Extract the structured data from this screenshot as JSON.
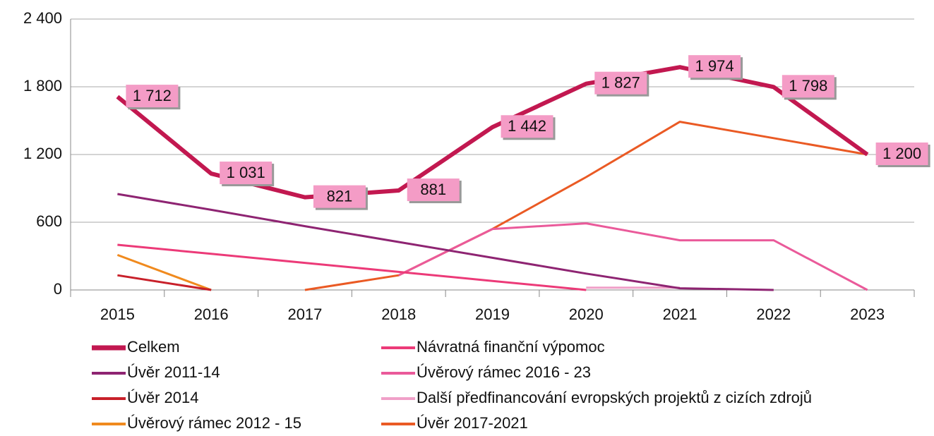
{
  "chart_data": {
    "type": "line",
    "categories": [
      "2015",
      "2016",
      "2017",
      "2018",
      "2019",
      "2020",
      "2021",
      "2022",
      "2023"
    ],
    "series": [
      {
        "name": "Celkem",
        "color": "#c21850",
        "width": 6,
        "values": [
          1712,
          1031,
          821,
          881,
          1442,
          1827,
          1974,
          1798,
          1200
        ],
        "value_labels": [
          "1 712",
          "1 031",
          "821",
          "881",
          "1 442",
          "1 827",
          "1 974",
          "1 798",
          "1 200"
        ]
      },
      {
        "name": "Úvěr 2011-14",
        "color": "#8e2472",
        "width": 3,
        "values": [
          850,
          710,
          565,
          425,
          285,
          145,
          15,
          0,
          null
        ]
      },
      {
        "name": "Úvěr 2014",
        "color": "#c8202a",
        "width": 3,
        "values": [
          130,
          0,
          null,
          null,
          null,
          null,
          null,
          null,
          null
        ]
      },
      {
        "name": "Úvěrový rámec  2012 - 15",
        "color": "#f08a1e",
        "width": 3,
        "values": [
          310,
          0,
          null,
          null,
          null,
          null,
          null,
          null,
          null
        ]
      },
      {
        "name": "Návratná finanční výpomoc",
        "color": "#ec3a78",
        "width": 3,
        "values": [
          400,
          320,
          240,
          160,
          80,
          0,
          null,
          null,
          null
        ]
      },
      {
        "name": "Úvěrový rámec  2016 - 23",
        "color": "#ea5a9a",
        "width": 3,
        "values": [
          null,
          null,
          null,
          130,
          540,
          590,
          440,
          440,
          0
        ]
      },
      {
        "name": "Další předfinancování evropských projektů z cizích zdrojů",
        "color": "#f0a0c8",
        "width": 3,
        "values": [
          null,
          null,
          null,
          null,
          null,
          20,
          20,
          null,
          null
        ]
      },
      {
        "name": "Úvěr 2017-2021",
        "color": "#ea5a24",
        "width": 3,
        "values": [
          null,
          null,
          0,
          130,
          540,
          1000,
          1490,
          1345,
          1200
        ]
      }
    ],
    "ylim": [
      0,
      2400
    ],
    "yticks": [
      {
        "value": 0,
        "label": "0"
      },
      {
        "value": 600,
        "label": "600"
      },
      {
        "value": 1200,
        "label": "1 200"
      },
      {
        "value": 1800,
        "label": "1 800"
      },
      {
        "value": 2400,
        "label": "2 400"
      }
    ],
    "grid": true,
    "legend": "bottom"
  }
}
